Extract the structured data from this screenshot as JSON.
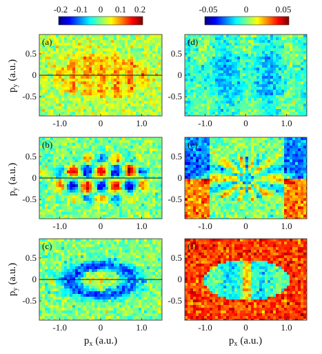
{
  "chart_data": [
    {
      "type": "heatmap",
      "panel_label": "(a)",
      "column": "left",
      "xlabel": "",
      "ylabel": "p_y (a.u.)",
      "xlim": [
        -1.5,
        1.5
      ],
      "ylim": [
        -0.95,
        0.95
      ],
      "x_ticks": [
        "-1.0",
        "0",
        "1.0"
      ],
      "y_ticks": [
        "0.5",
        "0",
        "-0.5"
      ],
      "colorbar_ticks": [
        "-0.2",
        "-0.1",
        "0",
        "0.1",
        "0.2"
      ],
      "clim": [
        -0.2,
        0.2
      ],
      "pattern": "faint positive ring",
      "axis_line": true
    },
    {
      "type": "heatmap",
      "panel_label": "(b)",
      "column": "left",
      "xlabel": "",
      "ylabel": "p_y (a.u.)",
      "xlim": [
        -1.5,
        1.5
      ],
      "ylim": [
        -0.95,
        0.95
      ],
      "x_ticks": [
        "-1.0",
        "0",
        "1.0"
      ],
      "y_ticks": [
        "0.5",
        "0",
        "-0.5"
      ],
      "clim": [
        -0.2,
        0.2
      ],
      "pattern": "antisymmetric stripes",
      "axis_line": true
    },
    {
      "type": "heatmap",
      "panel_label": "(c)",
      "column": "left",
      "xlabel": "p_x (a.u.)",
      "ylabel": "p_y (a.u.)",
      "xlim": [
        -1.5,
        1.5
      ],
      "ylim": [
        -0.95,
        0.95
      ],
      "x_ticks": [
        "-1.0",
        "0",
        "1.0"
      ],
      "y_ticks": [
        "0.5",
        "0",
        "-0.5"
      ],
      "clim": [
        -0.2,
        0.2
      ],
      "pattern": "negative ellipse",
      "axis_line": true
    },
    {
      "type": "heatmap",
      "panel_label": "(d)",
      "column": "right",
      "xlabel": "",
      "ylabel": "",
      "xlim": [
        -1.5,
        1.5
      ],
      "ylim": [
        -0.95,
        0.95
      ],
      "x_ticks": [
        "-1.0",
        "0",
        "1.0"
      ],
      "y_ticks": [
        "0.5",
        "0",
        "-0.5"
      ],
      "colorbar_ticks": [
        "-0.05",
        "0",
        "0.05"
      ],
      "clim": [
        -0.05,
        0.05
      ],
      "pattern": "ellipse band",
      "axis_line": false
    },
    {
      "type": "heatmap",
      "panel_label": "(e)",
      "column": "right",
      "xlabel": "",
      "ylabel": "",
      "xlim": [
        -1.5,
        1.5
      ],
      "ylim": [
        -0.95,
        0.95
      ],
      "x_ticks": [
        "-1.0",
        "0",
        "1.0"
      ],
      "y_ticks": [
        "0.5",
        "0",
        "-0.5"
      ],
      "clim": [
        -0.05,
        0.05
      ],
      "pattern": "fan rays",
      "axis_line": false
    },
    {
      "type": "heatmap",
      "panel_label": "(f)",
      "column": "right",
      "xlabel": "p_x (a.u.)",
      "ylabel": "",
      "xlim": [
        -1.5,
        1.5
      ],
      "ylim": [
        -0.95,
        0.95
      ],
      "x_ticks": [
        "-1.0",
        "0",
        "1.0"
      ],
      "y_ticks": [
        "0.5",
        "0",
        "-0.5"
      ],
      "clim": [
        -0.05,
        0.05
      ],
      "pattern": "ellipse on red background",
      "axis_line": false
    }
  ],
  "colormap": [
    "#00007f",
    "#0000ff",
    "#0080ff",
    "#00ffff",
    "#80ff80",
    "#ffff00",
    "#ff8000",
    "#ff0000",
    "#7f0000"
  ],
  "axis_label_parts": {
    "p": "p",
    "x": "x",
    "y": "y",
    "units": "(a.u.)"
  }
}
